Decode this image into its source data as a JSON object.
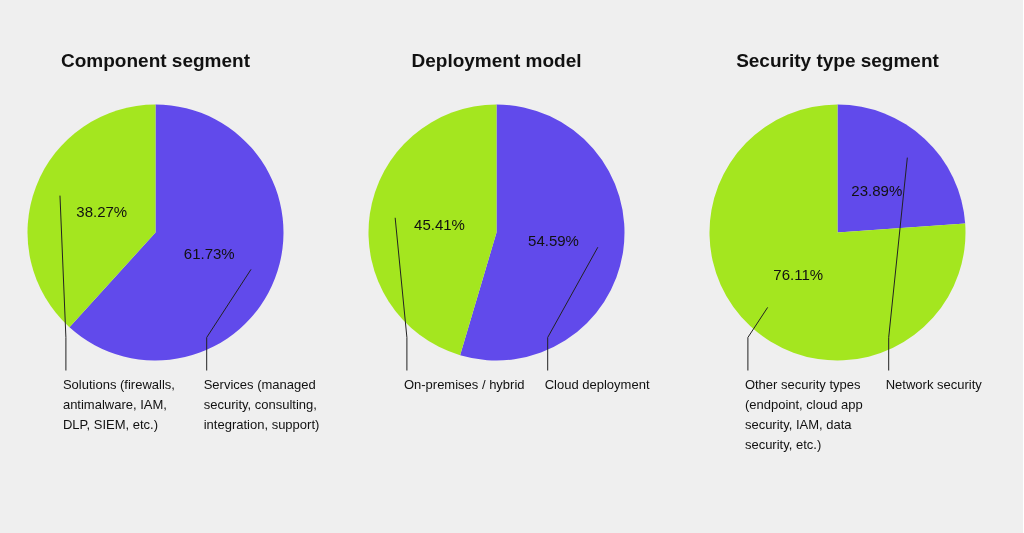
{
  "chart_data": [
    {
      "type": "pie",
      "title": "Component segment",
      "categories": [
        "Services (managed security, consulting, integration, support)",
        "Solutions (firewalls, antimalware, IAM, DLP, SIEM, etc.)"
      ],
      "values": [
        61.73,
        38.27
      ],
      "colors": [
        "#614aeb",
        "#a4e61f"
      ],
      "value_labels": [
        "61.73%",
        "38.27%"
      ]
    },
    {
      "type": "pie",
      "title": "Deployment model",
      "categories": [
        "Cloud deployment",
        "On-premises / hybrid"
      ],
      "values": [
        54.59,
        45.41
      ],
      "colors": [
        "#614aeb",
        "#a4e61f"
      ],
      "value_labels": [
        "54.59%",
        "45.41%"
      ]
    },
    {
      "type": "pie",
      "title": "Security type segment",
      "categories": [
        "Network security",
        "Other security types (endpoint, cloud app security, IAM, data security, etc.)"
      ],
      "values": [
        23.89,
        76.11
      ],
      "colors": [
        "#614aeb",
        "#a4e61f"
      ],
      "value_labels": [
        "23.89%",
        "76.11%"
      ]
    }
  ]
}
